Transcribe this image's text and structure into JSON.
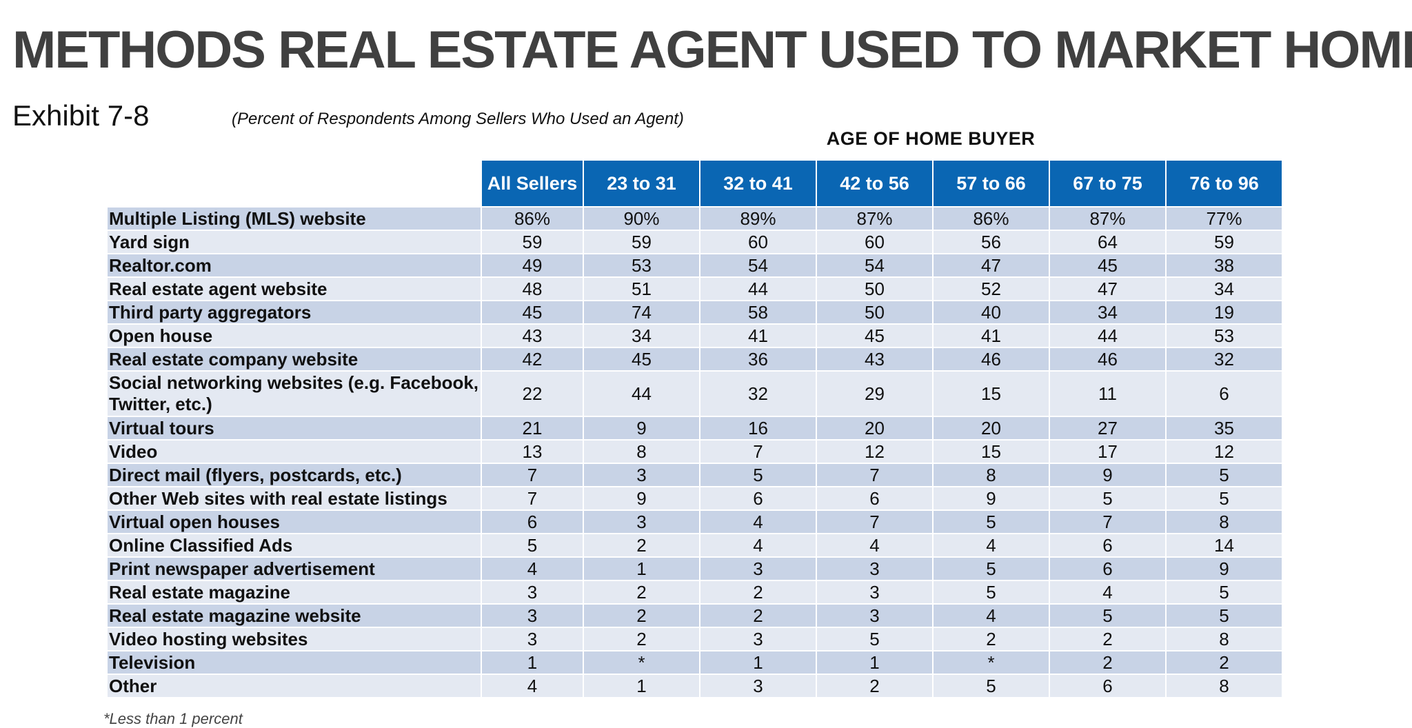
{
  "title": "METHODS REAL ESTATE AGENT USED TO MARKET HOME",
  "exhibit": "Exhibit 7-8",
  "subtitle": "(Percent of Respondents Among Sellers Who Used an Agent)",
  "group_heading": "AGE OF HOME BUYER",
  "columns": [
    "All Sellers",
    "23 to 31",
    "32 to 41",
    "42 to 56",
    "57 to 66",
    "67 to 75",
    "76 to 96"
  ],
  "rows": [
    {
      "label": "Multiple Listing (MLS) website",
      "values": [
        "86%",
        "90%",
        "89%",
        "87%",
        "86%",
        "87%",
        "77%"
      ]
    },
    {
      "label": "Yard sign",
      "values": [
        "59",
        "59",
        "60",
        "60",
        "56",
        "64",
        "59"
      ]
    },
    {
      "label": "Realtor.com",
      "values": [
        "49",
        "53",
        "54",
        "54",
        "47",
        "45",
        "38"
      ]
    },
    {
      "label": "Real estate agent website",
      "values": [
        "48",
        "51",
        "44",
        "50",
        "52",
        "47",
        "34"
      ]
    },
    {
      "label": "Third party aggregators",
      "values": [
        "45",
        "74",
        "58",
        "50",
        "40",
        "34",
        "19"
      ]
    },
    {
      "label": "Open house",
      "values": [
        "43",
        "34",
        "41",
        "45",
        "41",
        "44",
        "53"
      ]
    },
    {
      "label": "Real estate company website",
      "values": [
        "42",
        "45",
        "36",
        "43",
        "46",
        "46",
        "32"
      ]
    },
    {
      "label": "Social networking websites (e.g. Facebook, Twitter, etc.)",
      "values": [
        "22",
        "44",
        "32",
        "29",
        "15",
        "11",
        "6"
      ]
    },
    {
      "label": "Virtual tours",
      "values": [
        "21",
        "9",
        "16",
        "20",
        "20",
        "27",
        "35"
      ]
    },
    {
      "label": "Video",
      "values": [
        "13",
        "8",
        "7",
        "12",
        "15",
        "17",
        "12"
      ]
    },
    {
      "label": "Direct mail (flyers, postcards, etc.)",
      "values": [
        "7",
        "3",
        "5",
        "7",
        "8",
        "9",
        "5"
      ]
    },
    {
      "label": "Other Web sites with real estate listings",
      "values": [
        "7",
        "9",
        "6",
        "6",
        "9",
        "5",
        "5"
      ]
    },
    {
      "label": "Virtual open houses",
      "values": [
        "6",
        "3",
        "4",
        "7",
        "5",
        "7",
        "8"
      ]
    },
    {
      "label": "Online Classified Ads",
      "values": [
        "5",
        "2",
        "4",
        "4",
        "4",
        "6",
        "14"
      ]
    },
    {
      "label": "Print newspaper advertisement",
      "values": [
        "4",
        "1",
        "3",
        "3",
        "5",
        "6",
        "9"
      ]
    },
    {
      "label": "Real estate magazine",
      "values": [
        "3",
        "2",
        "2",
        "3",
        "5",
        "4",
        "5"
      ]
    },
    {
      "label": "Real estate magazine website",
      "values": [
        "3",
        "2",
        "2",
        "3",
        "4",
        "5",
        "5"
      ]
    },
    {
      "label": "Video hosting websites",
      "values": [
        "3",
        "2",
        "3",
        "5",
        "2",
        "2",
        "8"
      ]
    },
    {
      "label": "Television",
      "values": [
        "1",
        "*",
        "1",
        "1",
        "*",
        "2",
        "2"
      ]
    },
    {
      "label": "Other",
      "values": [
        "4",
        "1",
        "3",
        "2",
        "5",
        "6",
        "8"
      ]
    }
  ],
  "footnote": "*Less than 1 percent",
  "colors": {
    "header_bg": "#0a66b3",
    "row_odd": "#c8d3e6",
    "row_even": "#e4e9f2",
    "title": "#404040"
  }
}
